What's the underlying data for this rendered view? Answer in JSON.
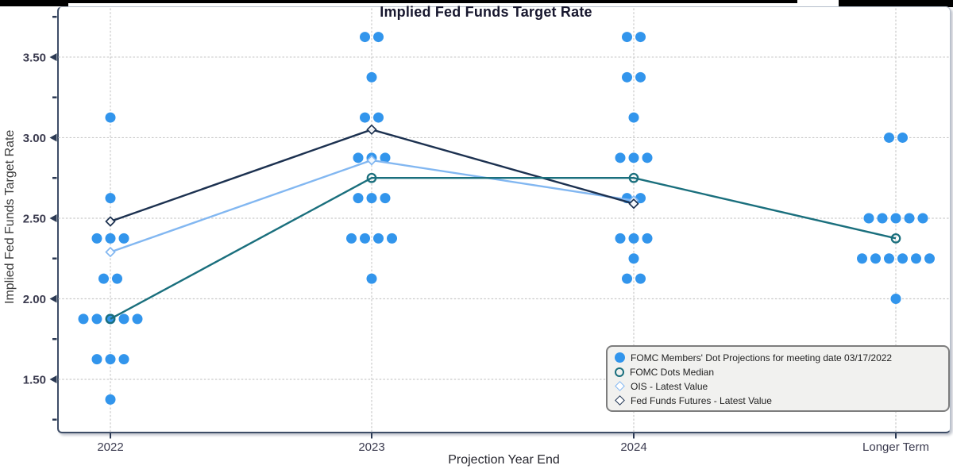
{
  "window": {
    "edge_artifact_color": "#000000"
  },
  "chart_data": {
    "type": "scatter",
    "title": "Implied Fed Funds Target Rate",
    "xlabel": "Projection Year End",
    "ylabel": "Implied Fed Funds Target Rate",
    "categories": [
      "2022",
      "2023",
      "2024",
      "Longer Term"
    ],
    "y_ticks": [
      1.5,
      2.0,
      2.5,
      3.0,
      3.5
    ],
    "y_tick_labels": [
      "1.50",
      "2.00",
      "2.50",
      "3.00",
      "3.50"
    ],
    "y_minor_ticks": [
      1.25,
      1.75,
      2.25,
      2.75,
      3.25,
      3.75
    ],
    "ylim": [
      1.165,
      3.815
    ],
    "grid": "dotted",
    "grid_color": "#c9c9c9",
    "spine_color": "#3e4d67",
    "tick_label_color": "#3b3b4f",
    "dot_series": {
      "name": "FOMC Members' Dot Projections for meeting date 03/17/2022",
      "color": "#3295ec",
      "columns": [
        {
          "category": "2022",
          "stacks": [
            [
              3.125,
              1
            ],
            [
              2.625,
              1
            ],
            [
              2.375,
              3
            ],
            [
              2.125,
              2
            ],
            [
              1.875,
              5
            ],
            [
              1.625,
              3
            ],
            [
              1.375,
              1
            ]
          ]
        },
        {
          "category": "2023",
          "stacks": [
            [
              3.625,
              2
            ],
            [
              3.375,
              1
            ],
            [
              3.125,
              2
            ],
            [
              2.875,
              3
            ],
            [
              2.625,
              3
            ],
            [
              2.375,
              4
            ],
            [
              2.125,
              1
            ]
          ]
        },
        {
          "category": "2024",
          "stacks": [
            [
              3.625,
              2
            ],
            [
              3.375,
              2
            ],
            [
              3.125,
              1
            ],
            [
              2.875,
              3
            ],
            [
              2.625,
              2
            ],
            [
              2.375,
              3
            ],
            [
              2.25,
              1
            ],
            [
              2.125,
              2
            ]
          ]
        },
        {
          "category": "Longer Term",
          "stacks": [
            [
              3.0,
              2
            ],
            [
              2.5,
              5
            ],
            [
              2.25,
              6
            ],
            [
              2.0,
              1
            ]
          ]
        }
      ]
    },
    "line_series": [
      {
        "name": "FOMC Dots Median",
        "marker": "open-circle",
        "color": "#1a6f7d",
        "categories": [
          "2022",
          "2023",
          "2024",
          "Longer Term"
        ],
        "values": [
          1.875,
          2.75,
          2.75,
          2.375
        ]
      },
      {
        "name": "OIS - Latest Value",
        "marker": "open-diamond",
        "color": "#82b7f1",
        "categories": [
          "2022",
          "2023",
          "2024"
        ],
        "values": [
          2.29,
          2.86,
          2.61
        ]
      },
      {
        "name": "Fed Funds Futures - Latest Value",
        "marker": "open-diamond-dark",
        "color": "#1c3150",
        "categories": [
          "2022",
          "2023",
          "2024"
        ],
        "values": [
          2.48,
          3.05,
          2.59
        ]
      }
    ],
    "legend": {
      "position": "bottom-right",
      "entries": [
        {
          "label": "FOMC Members' Dot Projections for meeting date 03/17/2022",
          "marker": "filled-circle"
        },
        {
          "label": "FOMC Dots Median",
          "marker": "open-circle"
        },
        {
          "label": "OIS - Latest Value",
          "marker": "open-diamond"
        },
        {
          "label": "Fed Funds Futures - Latest Value",
          "marker": "open-diamond-dark"
        }
      ]
    }
  }
}
